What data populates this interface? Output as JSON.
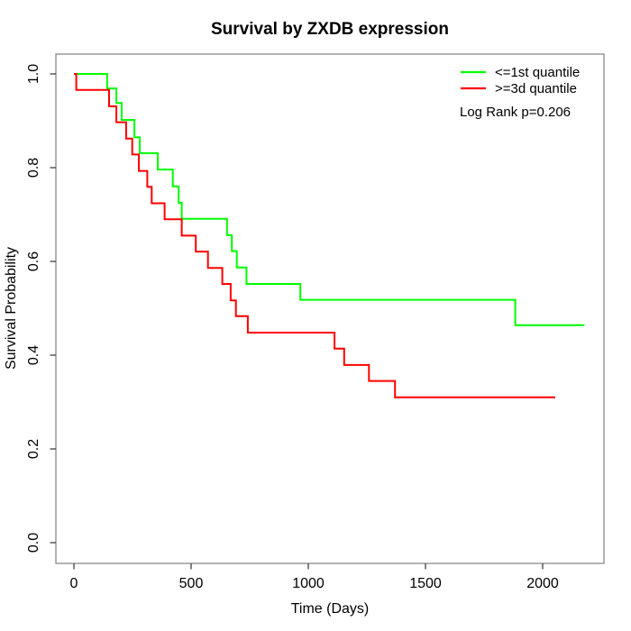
{
  "title": "Survival by ZXDB expression",
  "x_axis": {
    "label": "Time (Days)",
    "tick_labels": [
      "0",
      "500",
      "1000",
      "1500",
      "2000"
    ]
  },
  "y_axis": {
    "label": "Survival Probability",
    "tick_labels": [
      "0.0",
      "0.2",
      "0.4",
      "0.6",
      "0.8",
      "1.0"
    ]
  },
  "legend": {
    "items": [
      {
        "label": "<=1st quantile",
        "color": "#00ff00"
      },
      {
        "label": ">=3d quantile",
        "color": "#ff0000"
      }
    ]
  },
  "annotation": {
    "log_rank": "Log Rank p=0.206"
  },
  "chart_data": {
    "type": "line",
    "subtype": "kaplan-meier-step",
    "title": "Survival by ZXDB expression",
    "xlabel": "Time (Days)",
    "ylabel": "Survival Probability",
    "xlim": [
      0,
      2262
    ],
    "ylim": [
      0,
      1
    ],
    "x_ticks": [
      0,
      500,
      1000,
      1500,
      2000
    ],
    "y_ticks": [
      0.0,
      0.2,
      0.4,
      0.6,
      0.8,
      1.0
    ],
    "grid": false,
    "legend_position": "top-right",
    "annotation": "Log Rank p=0.206",
    "series": [
      {
        "name": "<=1st quantile",
        "color": "#00ff00",
        "end_time": 2178,
        "steps": [
          [
            0,
            1.0
          ],
          [
            142,
            0.969
          ],
          [
            181,
            0.938
          ],
          [
            204,
            0.902
          ],
          [
            258,
            0.865
          ],
          [
            281,
            0.831
          ],
          [
            358,
            0.796
          ],
          [
            422,
            0.76
          ],
          [
            447,
            0.725
          ],
          [
            460,
            0.691
          ],
          [
            653,
            0.656
          ],
          [
            674,
            0.622
          ],
          [
            695,
            0.587
          ],
          [
            736,
            0.552
          ],
          [
            966,
            0.518
          ],
          [
            1883,
            0.464
          ]
        ]
      },
      {
        "name": ">=3d quantile",
        "color": "#ff0000",
        "end_time": 2054,
        "steps": [
          [
            0,
            1.0
          ],
          [
            10,
            0.966
          ],
          [
            150,
            0.931
          ],
          [
            181,
            0.897
          ],
          [
            223,
            0.862
          ],
          [
            249,
            0.828
          ],
          [
            277,
            0.793
          ],
          [
            313,
            0.759
          ],
          [
            332,
            0.724
          ],
          [
            387,
            0.69
          ],
          [
            460,
            0.655
          ],
          [
            520,
            0.621
          ],
          [
            572,
            0.586
          ],
          [
            633,
            0.552
          ],
          [
            669,
            0.517
          ],
          [
            691,
            0.483
          ],
          [
            742,
            0.448
          ],
          [
            1112,
            0.414
          ],
          [
            1153,
            0.379
          ],
          [
            1259,
            0.345
          ],
          [
            1370,
            0.31
          ]
        ]
      }
    ]
  }
}
